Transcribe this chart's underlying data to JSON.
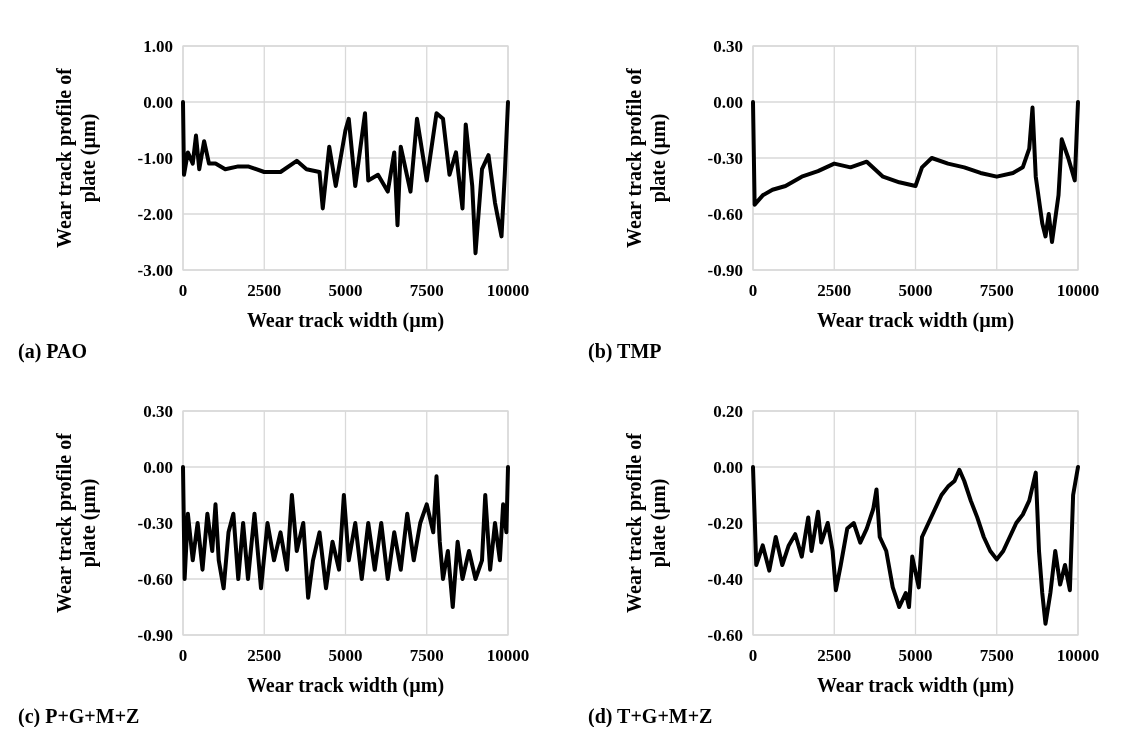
{
  "chart_data": [
    {
      "type": "line",
      "xlabel": "Wear track width (µm)",
      "ylabel": "Wear track profile of plate (µm)",
      "annotations": [
        "(a) PAO"
      ],
      "grid": true,
      "xlim": [
        0,
        10000
      ],
      "xticks": [
        0,
        2500,
        5000,
        7500,
        10000
      ],
      "ylim": [
        -3,
        1
      ],
      "yticks": [
        {
          "value": -3,
          "label": "-3.00"
        },
        {
          "value": -2,
          "label": "-2.00"
        },
        {
          "value": -1,
          "label": "-1.00"
        },
        {
          "value": 0,
          "label": "0.00"
        },
        {
          "value": 1,
          "label": "1.00"
        }
      ],
      "x": [
        0,
        30,
        150,
        300,
        400,
        500,
        650,
        800,
        1000,
        1300,
        1700,
        2000,
        2500,
        3000,
        3500,
        3800,
        4200,
        4300,
        4500,
        4700,
        5000,
        5100,
        5300,
        5600,
        5700,
        6000,
        6300,
        6500,
        6600,
        6700,
        7000,
        7200,
        7500,
        7800,
        8000,
        8200,
        8400,
        8600,
        8700,
        8900,
        9000,
        9200,
        9400,
        9600,
        9800,
        9900,
        10000
      ],
      "series": [
        {
          "color": "#000000",
          "values": [
            0,
            -1.3,
            -0.9,
            -1.1,
            -0.6,
            -1.2,
            -0.7,
            -1.1,
            -1.1,
            -1.2,
            -1.15,
            -1.15,
            -1.25,
            -1.25,
            -1.05,
            -1.2,
            -1.25,
            -1.9,
            -0.8,
            -1.5,
            -0.5,
            -0.3,
            -1.5,
            -0.2,
            -1.4,
            -1.3,
            -1.6,
            -0.9,
            -2.2,
            -0.8,
            -1.6,
            -0.3,
            -1.4,
            -0.2,
            -0.3,
            -1.3,
            -0.9,
            -1.9,
            -0.4,
            -1.5,
            -2.7,
            -1.2,
            -0.95,
            -1.8,
            -2.4,
            -1.3,
            0
          ]
        }
      ]
    },
    {
      "type": "line",
      "xlabel": "Wear track width (µm)",
      "ylabel": "Wear track profile of plate (µm)",
      "annotations": [
        "(b) TMP"
      ],
      "grid": true,
      "xlim": [
        0,
        10000
      ],
      "xticks": [
        0,
        2500,
        5000,
        7500,
        10000
      ],
      "ylim": [
        -0.9,
        0.3
      ],
      "yticks": [
        {
          "value": -0.9,
          "label": "-0.90"
        },
        {
          "value": -0.6,
          "label": "-0.60"
        },
        {
          "value": -0.3,
          "label": "-0.30"
        },
        {
          "value": 0,
          "label": "0.00"
        },
        {
          "value": 0.3,
          "label": "0.30"
        }
      ],
      "x": [
        0,
        50,
        300,
        600,
        1000,
        1500,
        2000,
        2500,
        3000,
        3500,
        4000,
        4500,
        5000,
        5200,
        5500,
        6000,
        6500,
        7000,
        7500,
        8000,
        8300,
        8500,
        8600,
        8700,
        8900,
        9000,
        9100,
        9200,
        9400,
        9500,
        9700,
        9900,
        10000
      ],
      "series": [
        {
          "color": "#000000",
          "values": [
            0,
            -0.55,
            -0.5,
            -0.47,
            -0.45,
            -0.4,
            -0.37,
            -0.33,
            -0.35,
            -0.32,
            -0.4,
            -0.43,
            -0.45,
            -0.35,
            -0.3,
            -0.33,
            -0.35,
            -0.38,
            -0.4,
            -0.38,
            -0.35,
            -0.25,
            -0.03,
            -0.4,
            -0.65,
            -0.72,
            -0.6,
            -0.75,
            -0.5,
            -0.2,
            -0.3,
            -0.42,
            0
          ]
        }
      ]
    },
    {
      "type": "line",
      "xlabel": "Wear track width (µm)",
      "ylabel": "Wear track profile of plate (µm)",
      "annotations": [
        "(c) P+G+M+Z"
      ],
      "grid": true,
      "xlim": [
        0,
        10000
      ],
      "xticks": [
        0,
        2500,
        5000,
        7500,
        10000
      ],
      "ylim": [
        -0.9,
        0.3
      ],
      "yticks": [
        {
          "value": -0.9,
          "label": "-0.90"
        },
        {
          "value": -0.6,
          "label": "-0.60"
        },
        {
          "value": -0.3,
          "label": "-0.30"
        },
        {
          "value": 0,
          "label": "0.00"
        },
        {
          "value": 0.3,
          "label": "0.30"
        }
      ],
      "x": [
        0,
        50,
        150,
        300,
        450,
        600,
        750,
        900,
        1000,
        1100,
        1250,
        1400,
        1550,
        1700,
        1850,
        2000,
        2200,
        2400,
        2600,
        2800,
        3000,
        3200,
        3350,
        3500,
        3700,
        3850,
        4000,
        4200,
        4400,
        4600,
        4800,
        4950,
        5100,
        5300,
        5500,
        5700,
        5900,
        6100,
        6300,
        6500,
        6700,
        6900,
        7100,
        7300,
        7500,
        7700,
        7800,
        7900,
        8000,
        8150,
        8300,
        8450,
        8600,
        8800,
        9000,
        9200,
        9300,
        9450,
        9600,
        9750,
        9850,
        9950,
        10000
      ],
      "series": [
        {
          "color": "#000000",
          "values": [
            0,
            -0.6,
            -0.25,
            -0.5,
            -0.3,
            -0.55,
            -0.25,
            -0.45,
            -0.2,
            -0.5,
            -0.65,
            -0.35,
            -0.25,
            -0.6,
            -0.3,
            -0.6,
            -0.25,
            -0.65,
            -0.3,
            -0.5,
            -0.35,
            -0.55,
            -0.15,
            -0.45,
            -0.3,
            -0.7,
            -0.5,
            -0.35,
            -0.65,
            -0.4,
            -0.55,
            -0.15,
            -0.5,
            -0.3,
            -0.6,
            -0.3,
            -0.55,
            -0.3,
            -0.6,
            -0.35,
            -0.55,
            -0.25,
            -0.5,
            -0.3,
            -0.2,
            -0.35,
            -0.05,
            -0.4,
            -0.6,
            -0.45,
            -0.75,
            -0.4,
            -0.6,
            -0.45,
            -0.6,
            -0.5,
            -0.15,
            -0.55,
            -0.3,
            -0.5,
            -0.2,
            -0.35,
            0
          ]
        }
      ]
    },
    {
      "type": "line",
      "xlabel": "Wear track width (µm)",
      "ylabel": "Wear track profile of plate (µm)",
      "annotations": [
        "(d) T+G+M+Z"
      ],
      "grid": true,
      "xlim": [
        0,
        10000
      ],
      "xticks": [
        0,
        2500,
        5000,
        7500,
        10000
      ],
      "ylim": [
        -0.6,
        0.2
      ],
      "yticks": [
        {
          "value": -0.6,
          "label": "-0.60"
        },
        {
          "value": -0.4,
          "label": "-0.40"
        },
        {
          "value": -0.2,
          "label": "-0.20"
        },
        {
          "value": 0,
          "label": "0.00"
        },
        {
          "value": 0.2,
          "label": "0.20"
        }
      ],
      "x": [
        0,
        100,
        300,
        500,
        700,
        900,
        1100,
        1300,
        1500,
        1700,
        1800,
        2000,
        2100,
        2300,
        2450,
        2550,
        2700,
        2900,
        3100,
        3300,
        3500,
        3700,
        3800,
        3900,
        4100,
        4300,
        4500,
        4700,
        4800,
        4900,
        5100,
        5200,
        5400,
        5600,
        5800,
        6000,
        6200,
        6350,
        6500,
        6700,
        6900,
        7100,
        7300,
        7500,
        7700,
        7900,
        8100,
        8300,
        8500,
        8700,
        8800,
        8900,
        9000,
        9150,
        9300,
        9450,
        9600,
        9750,
        9850,
        10000
      ],
      "series": [
        {
          "color": "#000000",
          "values": [
            0,
            -0.35,
            -0.28,
            -0.37,
            -0.25,
            -0.35,
            -0.28,
            -0.24,
            -0.32,
            -0.18,
            -0.3,
            -0.16,
            -0.27,
            -0.2,
            -0.3,
            -0.44,
            -0.35,
            -0.22,
            -0.2,
            -0.27,
            -0.22,
            -0.15,
            -0.08,
            -0.25,
            -0.3,
            -0.43,
            -0.5,
            -0.45,
            -0.5,
            -0.32,
            -0.43,
            -0.25,
            -0.2,
            -0.15,
            -0.1,
            -0.07,
            -0.05,
            -0.01,
            -0.05,
            -0.12,
            -0.18,
            -0.25,
            -0.3,
            -0.33,
            -0.3,
            -0.25,
            -0.2,
            -0.17,
            -0.12,
            -0.02,
            -0.3,
            -0.45,
            -0.56,
            -0.45,
            -0.3,
            -0.42,
            -0.35,
            -0.44,
            -0.1,
            0
          ]
        }
      ]
    }
  ]
}
